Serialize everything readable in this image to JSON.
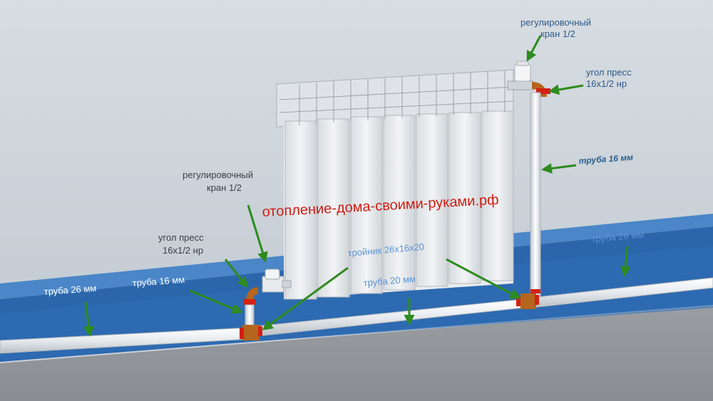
{
  "labels": {
    "valve_top_line1": "регулировочный",
    "valve_top_line2": "кран 1/2",
    "angle_top_line1": "угол пресс",
    "angle_top_line2": "16х1/2 нр",
    "pipe16_right": "труба 16 мм",
    "valve_left_line1": "регулировочный",
    "valve_left_line2": "кран 1/2",
    "angle_left_line1": "угол пресс",
    "angle_left_line2": "16х1/2 нр",
    "pipe26_left": "труба 26 мм",
    "pipe16_left": "труба 16 мм",
    "tee": "тройник 26х16х20",
    "pipe20": "труба 20 мм",
    "pipe26_right": "труба 26 мм"
  },
  "watermark": "отопление-дома-своими-руками.рф",
  "colors": {
    "wall": "#c9d1d8",
    "floor": "#8e9296",
    "channel_top": "#3f7bbf",
    "channel_front": "#2a64a8",
    "pipe": "#eef1f3",
    "fitting": "#b5651d",
    "nut": "#d32015",
    "arrow": "#2e8b1e",
    "watermark": "#d01d12"
  }
}
